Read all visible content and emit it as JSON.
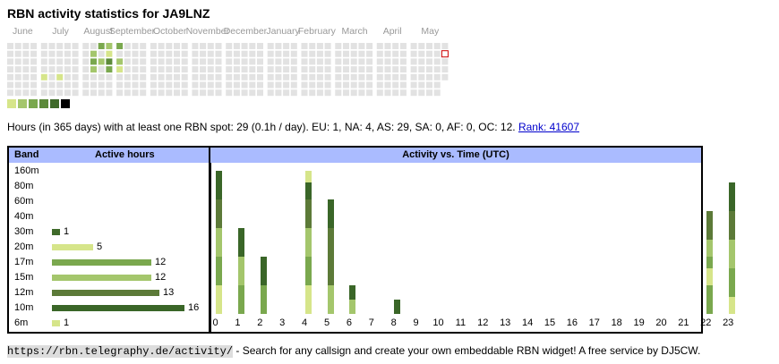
{
  "title": "RBN activity statistics for JA9LNZ",
  "months": [
    "June",
    "July",
    "August",
    "September",
    "October",
    "November",
    "December",
    "January",
    "February",
    "March",
    "April",
    "May"
  ],
  "heatmap": {
    "active_cells": [
      {
        "week": 11,
        "day": 0,
        "level": 3
      },
      {
        "week": 12,
        "day": 0,
        "level": 2
      },
      {
        "week": 13,
        "day": 0,
        "level": 3
      },
      {
        "week": 10,
        "day": 1,
        "level": 2
      },
      {
        "week": 12,
        "day": 1,
        "level": 1
      },
      {
        "week": 10,
        "day": 2,
        "level": 3
      },
      {
        "week": 11,
        "day": 2,
        "level": 2
      },
      {
        "week": 12,
        "day": 2,
        "level": 4
      },
      {
        "week": 13,
        "day": 2,
        "level": 2
      },
      {
        "week": 10,
        "day": 3,
        "level": 2
      },
      {
        "week": 12,
        "day": 3,
        "level": 3
      },
      {
        "week": 13,
        "day": 3,
        "level": 1
      },
      {
        "week": 4,
        "day": 4,
        "level": 1
      },
      {
        "week": 6,
        "day": 4,
        "level": 1
      }
    ],
    "marked_cell": {
      "week": 52,
      "day": 1
    },
    "legend_colors": [
      "#d6e58a",
      "#a4c66c",
      "#7aa84e",
      "#5c8a3a",
      "#3f6a2a",
      "#000000"
    ]
  },
  "summary": {
    "text": "Hours (in 365 days) with at least one RBN spot: 29 (0.1h / day). EU: 1, NA: 4, AS: 29, SA: 0, AF: 0, OC: 12.",
    "rank_label": "Rank: 41607"
  },
  "band_table": {
    "col_band": "Band",
    "col_hours": "Active hours",
    "rows": [
      {
        "band": "160m",
        "hours": null,
        "label": "",
        "color": ""
      },
      {
        "band": "80m",
        "hours": null,
        "label": "",
        "color": ""
      },
      {
        "band": "60m",
        "hours": null,
        "label": "",
        "color": ""
      },
      {
        "band": "40m",
        "hours": null,
        "label": "",
        "color": ""
      },
      {
        "band": "30m",
        "hours": 1,
        "label": "1",
        "color": "#3f6a2a"
      },
      {
        "band": "20m",
        "hours": 5,
        "label": "5",
        "color": "#d6e58a"
      },
      {
        "band": "17m",
        "hours": 12,
        "label": "12",
        "color": "#7aa84e"
      },
      {
        "band": "15m",
        "hours": 12,
        "label": "12",
        "color": "#a4c66c"
      },
      {
        "band": "12m",
        "hours": 13,
        "label": "13",
        "color": "#5c7a38"
      },
      {
        "band": "10m",
        "hours": 16,
        "label": "16",
        "color": "#3a6628"
      },
      {
        "band": "6m",
        "hours": 1,
        "label": "1",
        "color": "#d6e58a"
      }
    ]
  },
  "chart_data": {
    "type": "bar",
    "title": "Activity vs. Time (UTC)",
    "categories": [
      "0",
      "1",
      "2",
      "3",
      "4",
      "5",
      "6",
      "7",
      "8",
      "9",
      "10",
      "11",
      "12",
      "13",
      "14",
      "15",
      "16",
      "17",
      "18",
      "19",
      "20",
      "21",
      "22",
      "23"
    ],
    "stacks": [
      [
        {
          "v": 1,
          "c": "#d6e58a"
        },
        {
          "v": 1,
          "c": "#7aa84e"
        },
        {
          "v": 1,
          "c": "#a4c66c"
        },
        {
          "v": 1,
          "c": "#5c7a38"
        },
        {
          "v": 1,
          "c": "#3a6628"
        }
      ],
      [
        {
          "v": 1,
          "c": "#7aa84e"
        },
        {
          "v": 1,
          "c": "#a4c66c"
        },
        {
          "v": 1,
          "c": "#3a6628"
        }
      ],
      [
        {
          "v": 1,
          "c": "#7aa84e"
        },
        {
          "v": 1,
          "c": "#3a6628"
        }
      ],
      [],
      [
        {
          "v": 1,
          "c": "#d6e58a"
        },
        {
          "v": 1,
          "c": "#7aa84e"
        },
        {
          "v": 1,
          "c": "#a4c66c"
        },
        {
          "v": 1,
          "c": "#5c7a38"
        },
        {
          "v": 0.6,
          "c": "#3a6628"
        },
        {
          "v": 0.4,
          "c": "#d6e58a"
        }
      ],
      [
        {
          "v": 1,
          "c": "#a4c66c"
        },
        {
          "v": 2,
          "c": "#5c7a38"
        },
        {
          "v": 1,
          "c": "#3a6628"
        }
      ],
      [
        {
          "v": 0.5,
          "c": "#a4c66c"
        },
        {
          "v": 0.5,
          "c": "#3a6628"
        }
      ],
      [],
      [
        {
          "v": 0.5,
          "c": "#3a6628"
        }
      ],
      [],
      [],
      [],
      [],
      [],
      [],
      [],
      [],
      [],
      [],
      [],
      [],
      [],
      [
        {
          "v": 1,
          "c": "#7aa84e"
        },
        {
          "v": 0.6,
          "c": "#d6e58a"
        },
        {
          "v": 0.4,
          "c": "#7aa84e"
        },
        {
          "v": 0.6,
          "c": "#a4c66c"
        },
        {
          "v": 1,
          "c": "#5c7a38"
        }
      ],
      [
        {
          "v": 0.6,
          "c": "#d6e58a"
        },
        {
          "v": 1,
          "c": "#7aa84e"
        },
        {
          "v": 1,
          "c": "#a4c66c"
        },
        {
          "v": 1,
          "c": "#5c7a38"
        },
        {
          "v": 1,
          "c": "#3a6628"
        }
      ]
    ],
    "ymax": 5
  },
  "footer": {
    "url": "https://rbn.telegraphy.de/activity/",
    "text": " - Search for any callsign and create your own embeddable RBN widget! A free service by DJ5CW."
  }
}
